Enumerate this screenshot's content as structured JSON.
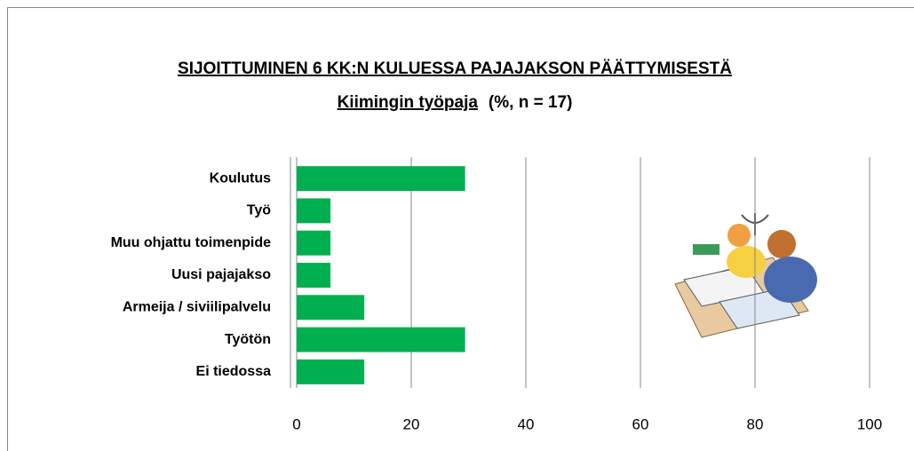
{
  "chart_data": {
    "type": "barh",
    "title": "SIJOITTUMINEN 6 KK:N KULUESSA PAJAJAKSON PÄÄTTYMISESTÄ",
    "subtitle": [
      "Kiimingin työpaja",
      "(%,  n = 17)"
    ],
    "categories": [
      "Koulutus",
      "Työ",
      "Muu ohjattu toimenpide",
      "Uusi pajajakso",
      "Armeija / siviilipalvelu",
      "Työtön",
      "Ei tiedossa"
    ],
    "values": [
      29.4,
      5.9,
      5.9,
      5.9,
      11.8,
      29.4,
      11.8
    ],
    "color": "#00b050",
    "xlim": [
      0,
      100
    ],
    "xticks": [
      0,
      20,
      40,
      60,
      80,
      100
    ],
    "grid": true
  }
}
